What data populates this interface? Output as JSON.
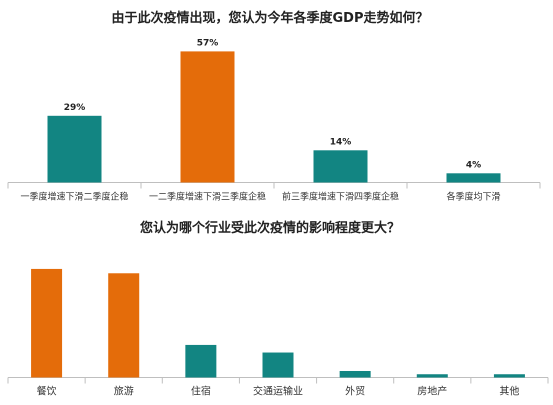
{
  "chart_data": [
    {
      "type": "bar",
      "title": "由于此次疫情出现，您认为今年各季度GDP走势如何？",
      "categories": [
        "一季度增速下滑二季度企稳",
        "一二季度增速下滑三季度企稳",
        "前三季度增速下滑四季度企稳",
        "各季度均下滑"
      ],
      "values": [
        29,
        57,
        14,
        4
      ],
      "value_labels": [
        "29%",
        "57%",
        "14%",
        "4%"
      ],
      "unit": "%",
      "colors": [
        "#128582",
        "#e46c0a",
        "#128582",
        "#128582"
      ],
      "ylim": [
        0,
        60
      ],
      "grid": false,
      "xlabel": "",
      "ylabel": ""
    },
    {
      "type": "bar",
      "title": "您认为哪个行业受此次疫情的影响程度更大？",
      "categories": [
        "餐饮",
        "旅游",
        "住宿",
        "交通运输业",
        "外贸",
        "房地产",
        "其他"
      ],
      "values": [
        100,
        96,
        30,
        23,
        6,
        3,
        3
      ],
      "colors": [
        "#e46c0a",
        "#e46c0a",
        "#128582",
        "#128582",
        "#128582",
        "#128582",
        "#128582"
      ],
      "ylim": [
        0,
        105
      ],
      "grid": false,
      "xlabel": "",
      "ylabel": ""
    }
  ]
}
